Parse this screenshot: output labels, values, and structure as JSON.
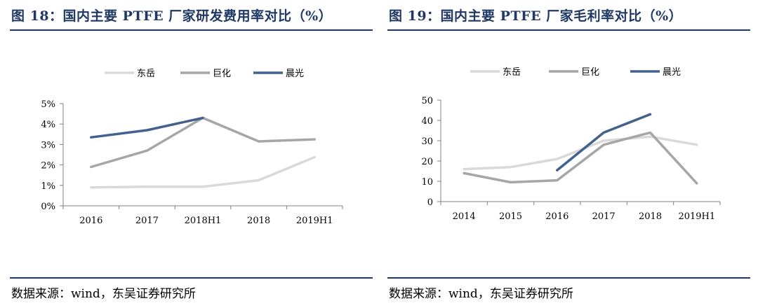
{
  "colors": {
    "title": "#1f3864",
    "rule": "#1f3864"
  },
  "panels": [
    {
      "title": "图 18：国内主要 PTFE 厂家研发费用率对比（%）",
      "source": "数据来源：wind，东吴证券研究所"
    },
    {
      "title": "图 19：国内主要 PTFE 厂家毛利率对比（%）",
      "source": "数据来源：wind，东吴证券研究所"
    }
  ],
  "chart_data": [
    {
      "type": "line",
      "categories": [
        "2016",
        "2017",
        "2018H1",
        "2018",
        "2019H1"
      ],
      "y_ticks": [
        "0%",
        "1%",
        "2%",
        "3%",
        "4%",
        "5%"
      ],
      "ylim": [
        0,
        5
      ],
      "grid": false,
      "legend": "top",
      "series": [
        {
          "name": "东岳",
          "color": "#d9d9d9",
          "values": [
            0.9,
            0.93,
            0.93,
            1.25,
            2.38
          ]
        },
        {
          "name": "巨化",
          "color": "#a6a6a6",
          "values": [
            1.9,
            2.7,
            4.3,
            3.15,
            3.25
          ]
        },
        {
          "name": "晨光",
          "color": "#44618e",
          "values": [
            3.35,
            3.7,
            4.3,
            null,
            null
          ]
        }
      ]
    },
    {
      "type": "line",
      "categories": [
        "2014",
        "2015",
        "2016",
        "2017",
        "2018",
        "2019H1"
      ],
      "y_ticks": [
        "0",
        "10",
        "20",
        "30",
        "40",
        "50"
      ],
      "ylim": [
        0,
        50
      ],
      "grid": false,
      "legend": "top",
      "series": [
        {
          "name": "东岳",
          "color": "#d9d9d9",
          "values": [
            16,
            17,
            21,
            30,
            32,
            28
          ]
        },
        {
          "name": "巨化",
          "color": "#a6a6a6",
          "values": [
            14,
            9.5,
            10.5,
            28,
            34,
            9
          ]
        },
        {
          "name": "晨光",
          "color": "#44618e",
          "values": [
            null,
            null,
            15.5,
            34,
            43,
            null
          ]
        }
      ]
    }
  ]
}
